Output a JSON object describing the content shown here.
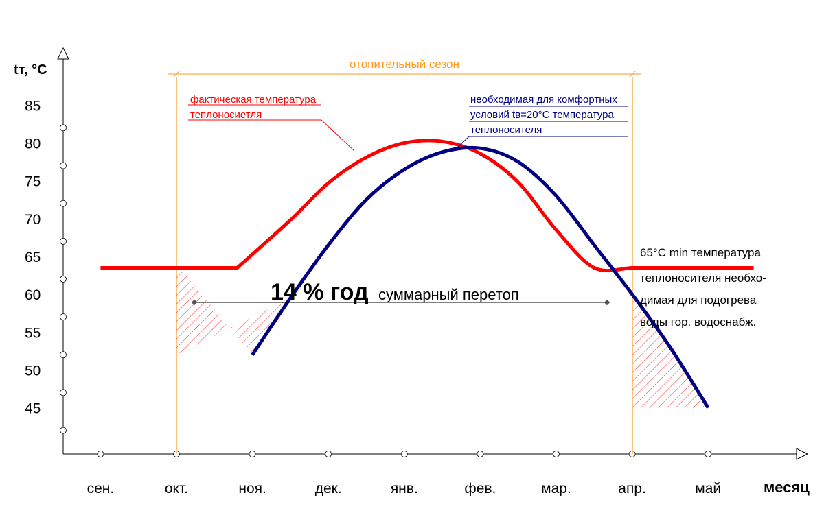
{
  "chart_data": {
    "type": "line",
    "title": "",
    "ylabel": "tт, °С",
    "xlabel": "месяц",
    "ylim": [
      40,
      90
    ],
    "yticks": [
      85,
      80,
      75,
      70,
      65,
      60,
      55,
      50,
      45
    ],
    "categories": [
      "сен.",
      "окт.",
      "ноя.",
      "дек.",
      "янв.",
      "фев.",
      "мар.",
      "апр.",
      "май"
    ],
    "heating_season_label": "отопительный сезон",
    "heating_season_range": [
      "окт.",
      "апр."
    ],
    "series": [
      {
        "name": "фактическая температура теплоносиетля",
        "label_lines": [
          "фактическая температура",
          "теплоносиетля"
        ],
        "color": "#ff0000",
        "x": [
          -1,
          0.8,
          1.5,
          2,
          2.5,
          3,
          3.5,
          4,
          4.5,
          5,
          5.5,
          6,
          6.23,
          7.6
        ],
        "y": [
          64.5,
          64.5,
          70.8,
          75.7,
          79.1,
          81.0,
          81.2,
          79.6,
          75.8,
          69.5,
          64.5,
          64.5,
          64.5,
          64.5
        ]
      },
      {
        "name": "необходимая для комфортных условий tв=20°С температура теплоносителя",
        "label_lines": [
          "необходимая для комфортных",
          "условий tв=20°С температура",
          "теплоносителя"
        ],
        "color": "#000080",
        "x": [
          1,
          1.5,
          2,
          2.5,
          3,
          3.5,
          4,
          4.5,
          5,
          5.5,
          6,
          6.5,
          7
        ],
        "y": [
          53.0,
          60.5,
          67.5,
          73.5,
          77.5,
          79.8,
          80.3,
          78.5,
          74.0,
          67.5,
          61.0,
          54.0,
          46.0
        ]
      }
    ],
    "min_line_label_lines": [
      "65°С min температура",
      "теплоносителя необхо-",
      "димая для подогрева",
      "воды гор. водоснабж."
    ],
    "annotation_bold": "14 % год",
    "annotation_text": "суммарный перетоп"
  }
}
